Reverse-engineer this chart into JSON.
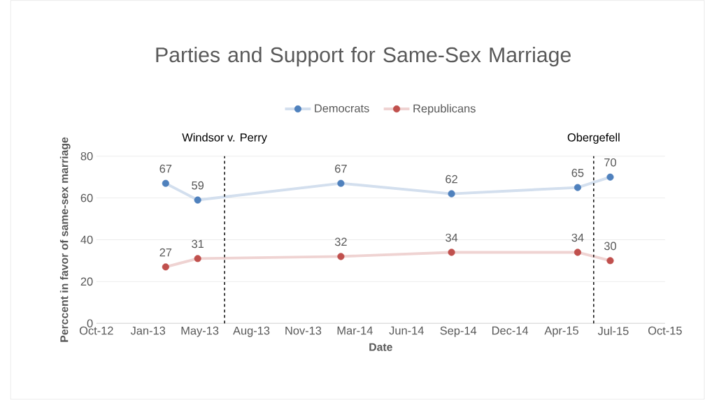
{
  "chart_data": {
    "type": "line",
    "title": "Parties and Support for Same-Sex Marriage",
    "xlabel": "Date",
    "ylabel": "Perccent in favor of same-sex marriage",
    "x": [
      "2013-03-02",
      "2013-05-03",
      "2014-02-04",
      "2014-09-06",
      "2015-05-08",
      "2015-07-10"
    ],
    "series": [
      {
        "name": "Democrats",
        "color": "#4f81bd",
        "values": [
          67,
          59,
          67,
          62,
          65,
          70
        ]
      },
      {
        "name": "Republicans",
        "color": "#c0504d",
        "values": [
          27,
          31,
          32,
          34,
          34,
          30
        ]
      }
    ],
    "xlim": [
      "2012-10-19",
      "2015-10-24"
    ],
    "xticks": [
      {
        "value": "2012-10-19",
        "label": "Oct-12"
      },
      {
        "value": "2013-01-27",
        "label": "Jan-13"
      },
      {
        "value": "2013-05-07",
        "label": "May-13"
      },
      {
        "value": "2013-08-15",
        "label": "Aug-13"
      },
      {
        "value": "2013-11-23",
        "label": "Nov-13"
      },
      {
        "value": "2014-03-03",
        "label": "Mar-14"
      },
      {
        "value": "2014-06-11",
        "label": "Jun-14"
      },
      {
        "value": "2014-09-19",
        "label": "Sep-14"
      },
      {
        "value": "2014-12-28",
        "label": "Dec-14"
      },
      {
        "value": "2015-04-07",
        "label": "Apr-15"
      },
      {
        "value": "2015-07-16",
        "label": "Jul-15"
      },
      {
        "value": "2015-10-24",
        "label": "Oct-15"
      }
    ],
    "ylim": [
      0,
      80
    ],
    "yticks": [
      0,
      20,
      40,
      60,
      80
    ],
    "ref_lines": [
      {
        "axis": "x",
        "value": "2013-06-24",
        "label": "Windsor v. Perry",
        "line_style": "dashed",
        "color": "#000000"
      },
      {
        "axis": "x",
        "value": "2015-06-08",
        "label": "Obergefell",
        "line_style": "dashed",
        "color": "#000000"
      }
    ],
    "grid": "y",
    "legend": "top",
    "marker": "circle",
    "line_style": "solid",
    "data_labels": true
  }
}
